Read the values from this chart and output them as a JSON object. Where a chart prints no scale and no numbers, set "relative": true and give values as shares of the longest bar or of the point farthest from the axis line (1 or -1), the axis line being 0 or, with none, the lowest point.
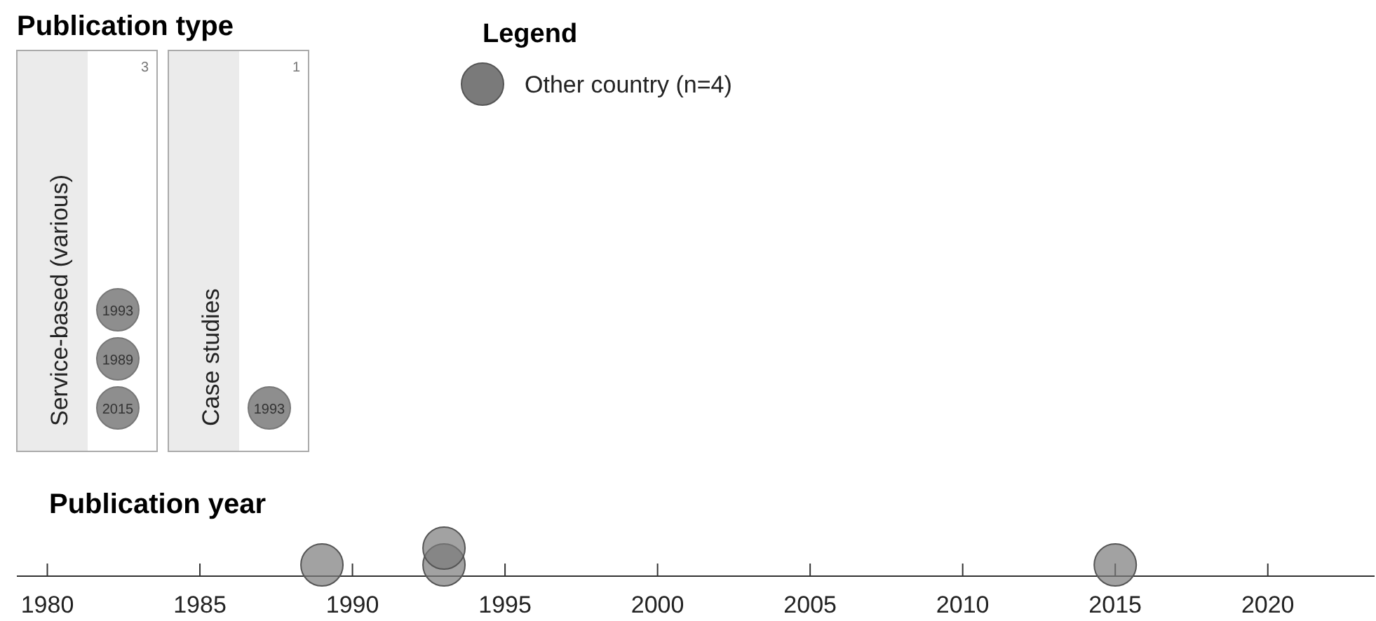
{
  "chart_data": [
    {
      "type": "other",
      "title": "Publication type",
      "categories": [
        "Service-based (various)",
        "Case studies"
      ],
      "values": [
        3,
        1
      ],
      "data_labels": true,
      "annotations": [
        {
          "text": "2015",
          "x": "Service-based (various)"
        },
        {
          "text": "1989",
          "x": "Service-based (various)"
        },
        {
          "text": "1993",
          "x": "Service-based (various)"
        },
        {
          "text": "1993",
          "x": "Case studies"
        }
      ]
    },
    {
      "type": "scatter",
      "title": "Publication year",
      "relative": true,
      "x": [
        1989,
        1993,
        1993,
        2015
      ],
      "xlim": [
        1979,
        2023.5
      ],
      "xticks": [
        1980,
        1985,
        1990,
        1995,
        2000,
        2005,
        2010,
        2015,
        2020
      ],
      "tick_labels": "x",
      "marker": "circle",
      "legend": "top",
      "legend_title": "Legend",
      "series": [
        {
          "name": "Other country (n=4)",
          "color": "#7a7a7a",
          "values": [
            0.4,
            0.4,
            1,
            0.4
          ]
        }
      ]
    }
  ]
}
